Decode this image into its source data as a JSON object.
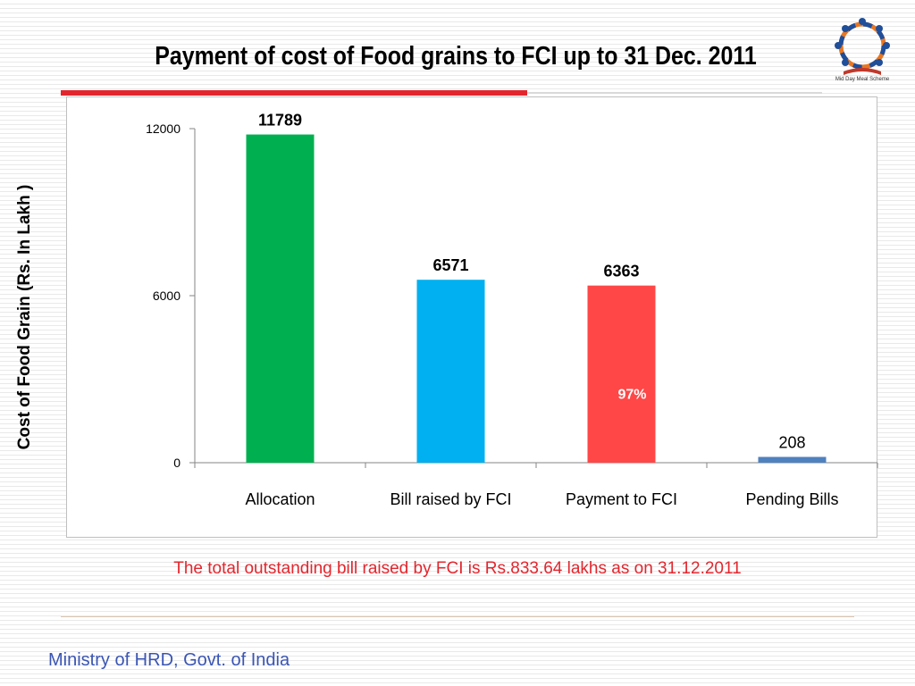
{
  "slide": {
    "title": "Payment of cost of Food grains to FCI up to 31 Dec. 2011",
    "note": "The total outstanding bill raised by FCI is Rs.833.64 lakhs as on 31.12.2011",
    "footer": "Ministry of HRD, Govt. of India",
    "logo_caption": "Mid Day Meal Scheme"
  },
  "chart_data": {
    "type": "bar",
    "title": "Payment of cost of Food grains to FCI up to 31 Dec. 2011",
    "ylabel": "Cost of Food Grain (Rs. In Lakh )",
    "xlabel": "",
    "ylim": [
      0,
      12000
    ],
    "yticks": [
      0,
      6000,
      12000
    ],
    "categories": [
      "Allocation",
      "Bill raised by FCI",
      "Payment to FCI",
      "Pending Bills"
    ],
    "values": [
      11789,
      6571,
      6363,
      208
    ],
    "value_labels": [
      "11789",
      "6571",
      "6363",
      "208"
    ],
    "colors": [
      "#00b050",
      "#00b0f0",
      "#ff4747",
      "#4f81bd"
    ],
    "annotations": [
      {
        "category": "Payment to FCI",
        "text": "97%",
        "color": "#ffffff"
      }
    ],
    "grid": false,
    "legend": "none"
  }
}
